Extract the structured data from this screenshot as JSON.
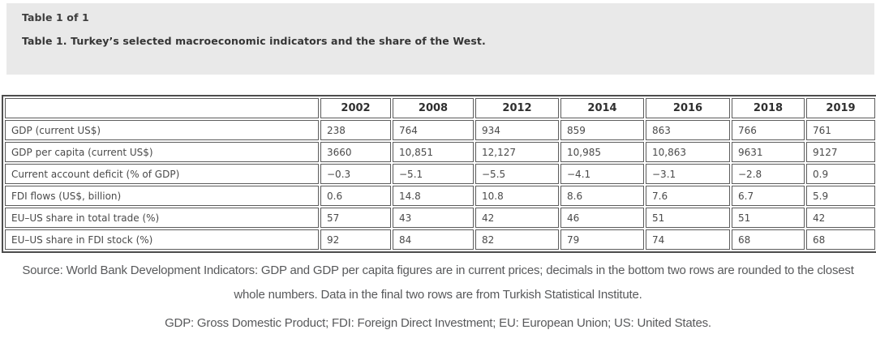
{
  "header": {
    "counter": "Table 1 of 1",
    "title": "Table 1. Turkey’s selected macroeconomic indicators and the share of the West."
  },
  "table": {
    "columns": [
      "",
      "2002",
      "2008",
      "2012",
      "2014",
      "2016",
      "2018",
      "2019"
    ],
    "rows": [
      {
        "label": "GDP (current US$)",
        "values": [
          "238",
          "764",
          "934",
          "859",
          "863",
          "766",
          "761"
        ]
      },
      {
        "label": "GDP per capita (current US$)",
        "values": [
          "3660",
          "10,851",
          "12,127",
          "10,985",
          "10,863",
          "9631",
          "9127"
        ]
      },
      {
        "label": "Current account deficit (% of GDP)",
        "values": [
          "−0.3",
          "−5.1",
          "−5.5",
          "−4.1",
          "−3.1",
          "−2.8",
          "0.9"
        ]
      },
      {
        "label": "FDI flows (US$, billion)",
        "values": [
          "0.6",
          "14.8",
          "10.8",
          "8.6",
          "7.6",
          "6.7",
          "5.9"
        ]
      },
      {
        "label": "EU–US share in total trade (%)",
        "values": [
          "57",
          "43",
          "42",
          "46",
          "51",
          "51",
          "42"
        ]
      },
      {
        "label": "EU–US share in FDI stock (%)",
        "values": [
          "92",
          "84",
          "82",
          "79",
          "74",
          "68",
          "68"
        ]
      }
    ]
  },
  "footer": {
    "source": "Source: World Bank Development Indicators: GDP and GDP per capita figures are in current prices; decimals in the bottom two rows are rounded to the closest whole numbers. Data in the final two rows are from Turkish Statistical Institute.",
    "abbreviations": "GDP: Gross Domestic Product; FDI: Foreign Direct Investment; EU: European Union; US: United States."
  }
}
